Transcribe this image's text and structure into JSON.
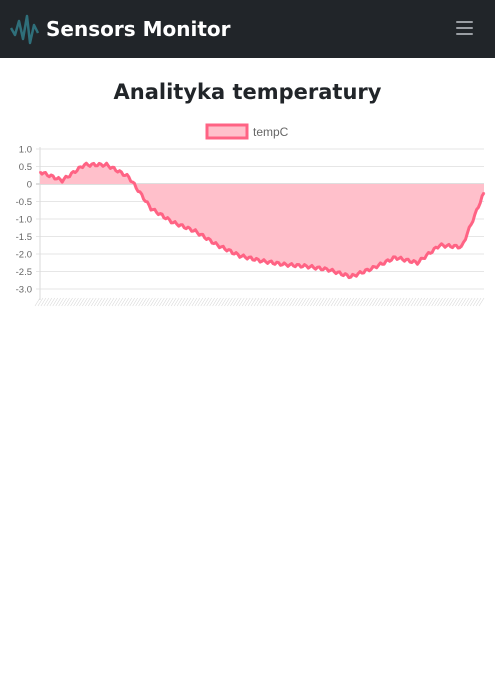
{
  "app": {
    "title": "Sensors Monitor"
  },
  "navbar": {
    "menu_icon": "hamburger-menu-icon",
    "logo_icon": "sensor-wave-logo-icon"
  },
  "page": {
    "title": "Analityka temperatury"
  },
  "colors": {
    "navbar": "#212529",
    "series_line": "#ff6384",
    "series_fill": "#ffc0cb"
  },
  "chart_data": {
    "type": "area",
    "title": "",
    "xlabel": "",
    "ylabel": "",
    "legend": {
      "position": "top",
      "entries": [
        "tempC"
      ]
    },
    "ylim": [
      -3.2,
      1.0
    ],
    "yticks": [
      1.0,
      0.5,
      0,
      -0.5,
      -1.0,
      -1.5,
      -2.0,
      -2.5,
      -3.0
    ],
    "ytick_labels": [
      "1.0",
      "0.5",
      "0",
      "-0.5",
      "-1.0",
      "-1.5",
      "-2.0",
      "-2.5",
      "-3.0"
    ],
    "grid": true,
    "x": [
      0,
      5,
      10,
      15,
      20,
      25,
      30,
      35,
      40,
      45,
      50,
      55,
      60,
      65,
      70,
      75,
      80,
      85,
      90,
      95,
      100
    ],
    "series": [
      {
        "name": "tempC",
        "values": [
          0.35,
          0.1,
          0.55,
          0.55,
          0.2,
          -0.7,
          -1.1,
          -1.35,
          -1.75,
          -2.05,
          -2.2,
          -2.3,
          -2.35,
          -2.45,
          -2.65,
          -2.4,
          -2.1,
          -2.25,
          -1.75,
          -1.8,
          -0.25
        ]
      }
    ]
  }
}
